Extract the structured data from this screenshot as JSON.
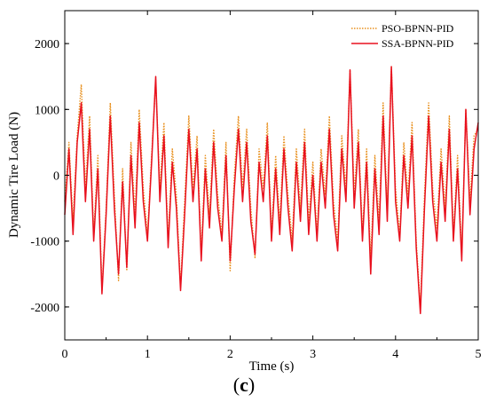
{
  "chart_data": {
    "type": "line",
    "xlabel": "Time (s)",
    "ylabel": "Dynamic Tire Load (N)",
    "xlim": [
      0,
      5
    ],
    "ylim": [
      -2500,
      2500
    ],
    "xticks": [
      0,
      1,
      2,
      3,
      4,
      5
    ],
    "yticks": [
      -2000,
      -1000,
      0,
      1000,
      2000
    ],
    "grid": false,
    "legend": "top-right",
    "panel_label": {
      "open": "(",
      "letter": "c",
      "close": ")"
    },
    "series": [
      {
        "name": "PSO-BPNN-PID",
        "color": "#e8901e",
        "style": "dotted",
        "points": [
          [
            0,
            -400
          ],
          [
            0.05,
            500
          ],
          [
            0.1,
            -700
          ],
          [
            0.15,
            600
          ],
          [
            0.2,
            1380
          ],
          [
            0.25,
            -200
          ],
          [
            0.3,
            900
          ],
          [
            0.35,
            -900
          ],
          [
            0.4,
            300
          ],
          [
            0.45,
            -1750
          ],
          [
            0.5,
            -500
          ],
          [
            0.55,
            1100
          ],
          [
            0.6,
            -300
          ],
          [
            0.65,
            -1600
          ],
          [
            0.7,
            100
          ],
          [
            0.75,
            -1450
          ],
          [
            0.8,
            500
          ],
          [
            0.85,
            -600
          ],
          [
            0.9,
            1000
          ],
          [
            0.95,
            -200
          ],
          [
            1.0,
            -900
          ],
          [
            1.05,
            300
          ],
          [
            1.1,
            1450
          ],
          [
            1.15,
            -200
          ],
          [
            1.2,
            800
          ],
          [
            1.25,
            -1000
          ],
          [
            1.3,
            400
          ],
          [
            1.35,
            -300
          ],
          [
            1.4,
            -1700
          ],
          [
            1.45,
            -400
          ],
          [
            1.5,
            900
          ],
          [
            1.55,
            -200
          ],
          [
            1.6,
            600
          ],
          [
            1.65,
            -1200
          ],
          [
            1.7,
            300
          ],
          [
            1.75,
            -600
          ],
          [
            1.8,
            700
          ],
          [
            1.85,
            -300
          ],
          [
            1.9,
            -900
          ],
          [
            1.95,
            500
          ],
          [
            2.0,
            -1450
          ],
          [
            2.05,
            0
          ],
          [
            2.1,
            900
          ],
          [
            2.15,
            -200
          ],
          [
            2.2,
            700
          ],
          [
            2.25,
            -500
          ],
          [
            2.3,
            -1250
          ],
          [
            2.35,
            400
          ],
          [
            2.4,
            -200
          ],
          [
            2.45,
            800
          ],
          [
            2.5,
            -900
          ],
          [
            2.55,
            300
          ],
          [
            2.6,
            -700
          ],
          [
            2.65,
            600
          ],
          [
            2.7,
            -300
          ],
          [
            2.75,
            -1000
          ],
          [
            2.8,
            400
          ],
          [
            2.85,
            -500
          ],
          [
            2.9,
            700
          ],
          [
            2.95,
            -700
          ],
          [
            3.0,
            200
          ],
          [
            3.05,
            -900
          ],
          [
            3.1,
            400
          ],
          [
            3.15,
            -300
          ],
          [
            3.2,
            900
          ],
          [
            3.25,
            -400
          ],
          [
            3.3,
            -1000
          ],
          [
            3.35,
            600
          ],
          [
            3.4,
            -200
          ],
          [
            3.45,
            1600
          ],
          [
            3.5,
            -300
          ],
          [
            3.55,
            700
          ],
          [
            3.6,
            -900
          ],
          [
            3.65,
            400
          ],
          [
            3.7,
            -1300
          ],
          [
            3.75,
            300
          ],
          [
            3.8,
            -700
          ],
          [
            3.85,
            1100
          ],
          [
            3.9,
            -500
          ],
          [
            3.95,
            1650
          ],
          [
            4.0,
            -200
          ],
          [
            4.05,
            -900
          ],
          [
            4.1,
            500
          ],
          [
            4.15,
            -300
          ],
          [
            4.2,
            800
          ],
          [
            4.25,
            -1000
          ],
          [
            4.3,
            -2000
          ],
          [
            4.35,
            -300
          ],
          [
            4.4,
            1100
          ],
          [
            4.45,
            -200
          ],
          [
            4.5,
            -800
          ],
          [
            4.55,
            400
          ],
          [
            4.6,
            -500
          ],
          [
            4.65,
            900
          ],
          [
            4.7,
            -900
          ],
          [
            4.75,
            300
          ],
          [
            4.8,
            -1200
          ],
          [
            4.85,
            1000
          ],
          [
            4.9,
            -400
          ],
          [
            4.95,
            600
          ],
          [
            5.0,
            700
          ]
        ]
      },
      {
        "name": "SSA-BPNN-PID",
        "color": "#e8101e",
        "style": "solid",
        "points": [
          [
            0,
            -600
          ],
          [
            0.05,
            400
          ],
          [
            0.1,
            -900
          ],
          [
            0.15,
            500
          ],
          [
            0.2,
            1100
          ],
          [
            0.25,
            -400
          ],
          [
            0.3,
            700
          ],
          [
            0.35,
            -1000
          ],
          [
            0.4,
            100
          ],
          [
            0.45,
            -1800
          ],
          [
            0.5,
            -600
          ],
          [
            0.55,
            900
          ],
          [
            0.6,
            -500
          ],
          [
            0.65,
            -1500
          ],
          [
            0.7,
            -100
          ],
          [
            0.75,
            -1400
          ],
          [
            0.8,
            300
          ],
          [
            0.85,
            -800
          ],
          [
            0.9,
            800
          ],
          [
            0.95,
            -400
          ],
          [
            1.0,
            -1000
          ],
          [
            1.05,
            200
          ],
          [
            1.1,
            1500
          ],
          [
            1.15,
            -400
          ],
          [
            1.2,
            600
          ],
          [
            1.25,
            -1100
          ],
          [
            1.3,
            200
          ],
          [
            1.35,
            -500
          ],
          [
            1.4,
            -1750
          ],
          [
            1.45,
            -600
          ],
          [
            1.5,
            700
          ],
          [
            1.55,
            -400
          ],
          [
            1.6,
            400
          ],
          [
            1.65,
            -1300
          ],
          [
            1.7,
            100
          ],
          [
            1.75,
            -800
          ],
          [
            1.8,
            500
          ],
          [
            1.85,
            -500
          ],
          [
            1.9,
            -1000
          ],
          [
            1.95,
            300
          ],
          [
            2.0,
            -1300
          ],
          [
            2.05,
            -200
          ],
          [
            2.1,
            700
          ],
          [
            2.15,
            -400
          ],
          [
            2.2,
            500
          ],
          [
            2.25,
            -700
          ],
          [
            2.3,
            -1200
          ],
          [
            2.35,
            200
          ],
          [
            2.4,
            -400
          ],
          [
            2.45,
            600
          ],
          [
            2.5,
            -1000
          ],
          [
            2.55,
            100
          ],
          [
            2.6,
            -900
          ],
          [
            2.65,
            400
          ],
          [
            2.7,
            -500
          ],
          [
            2.75,
            -1150
          ],
          [
            2.8,
            200
          ],
          [
            2.85,
            -700
          ],
          [
            2.9,
            500
          ],
          [
            2.95,
            -900
          ],
          [
            3.0,
            0
          ],
          [
            3.05,
            -1000
          ],
          [
            3.1,
            200
          ],
          [
            3.15,
            -500
          ],
          [
            3.2,
            700
          ],
          [
            3.25,
            -600
          ],
          [
            3.3,
            -1150
          ],
          [
            3.35,
            400
          ],
          [
            3.4,
            -400
          ],
          [
            3.45,
            1600
          ],
          [
            3.5,
            -500
          ],
          [
            3.55,
            500
          ],
          [
            3.6,
            -1000
          ],
          [
            3.65,
            200
          ],
          [
            3.7,
            -1500
          ],
          [
            3.75,
            100
          ],
          [
            3.8,
            -900
          ],
          [
            3.85,
            900
          ],
          [
            3.9,
            -700
          ],
          [
            3.95,
            1650
          ],
          [
            4.0,
            -400
          ],
          [
            4.05,
            -1000
          ],
          [
            4.1,
            300
          ],
          [
            4.15,
            -500
          ],
          [
            4.2,
            600
          ],
          [
            4.25,
            -1100
          ],
          [
            4.3,
            -2100
          ],
          [
            4.35,
            -500
          ],
          [
            4.4,
            900
          ],
          [
            4.45,
            -400
          ],
          [
            4.5,
            -1000
          ],
          [
            4.55,
            200
          ],
          [
            4.6,
            -700
          ],
          [
            4.65,
            700
          ],
          [
            4.7,
            -1000
          ],
          [
            4.75,
            100
          ],
          [
            4.8,
            -1300
          ],
          [
            4.85,
            1000
          ],
          [
            4.9,
            -600
          ],
          [
            4.95,
            400
          ],
          [
            5.0,
            800
          ]
        ]
      }
    ]
  }
}
